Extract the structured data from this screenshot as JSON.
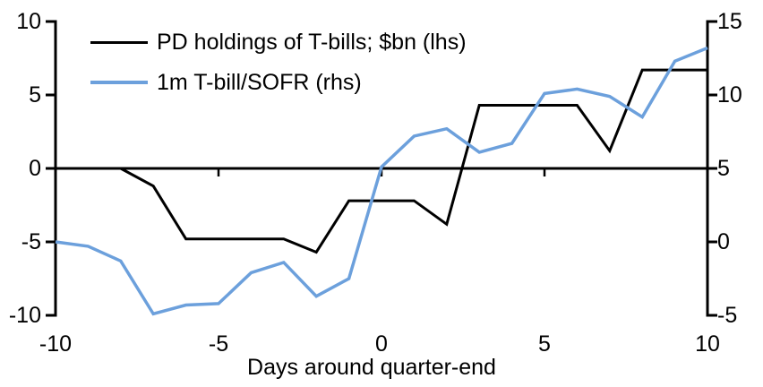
{
  "page": {
    "background": "#ffffff",
    "axis_color": "#000000",
    "text_color": "#000000"
  },
  "chart_data": {
    "type": "line",
    "title": "",
    "xlabel": "Days around quarter-end",
    "x": [
      -10,
      -9,
      -8,
      -7,
      -6,
      -5,
      -4,
      -3,
      -2,
      -1,
      0,
      1,
      2,
      3,
      4,
      5,
      6,
      7,
      8,
      9,
      10
    ],
    "xlim": [
      -10,
      10
    ],
    "ylim_left": [
      -10,
      10
    ],
    "ylim_right": [
      -5,
      15
    ],
    "x_tick_labels": [
      "-10",
      "-5",
      "0",
      "5",
      "10"
    ],
    "left_tick_labels": [
      "10",
      "5",
      "0",
      "-5",
      "-10"
    ],
    "right_tick_labels": [
      "15",
      "10",
      "5",
      "0",
      "-5"
    ],
    "grid": false,
    "legend_position": "top-left",
    "axis_crosses_at_zero": true,
    "series": [
      {
        "name": "PD holdings of T-bills; $bn (lhs)",
        "axis": "left",
        "color": "#000000",
        "stroke_width": 3,
        "values": [
          0,
          0,
          0,
          -1.2,
          -4.8,
          -4.8,
          -4.8,
          -4.8,
          -5.7,
          -2.2,
          -2.2,
          -2.2,
          -3.8,
          4.3,
          4.3,
          4.3,
          4.3,
          1.2,
          6.7,
          6.7,
          6.7
        ]
      },
      {
        "name": "1m T-bill/SOFR (rhs)",
        "axis": "right",
        "color": "#6CA0DC",
        "stroke_width": 3.5,
        "values": [
          0,
          -0.3,
          -1.3,
          -4.9,
          -4.3,
          -4.2,
          -2.1,
          -1.4,
          -3.7,
          -2.5,
          5.1,
          7.2,
          7.7,
          6.1,
          6.7,
          10.1,
          10.4,
          9.9,
          8.5,
          12.3,
          13.2
        ]
      }
    ]
  }
}
